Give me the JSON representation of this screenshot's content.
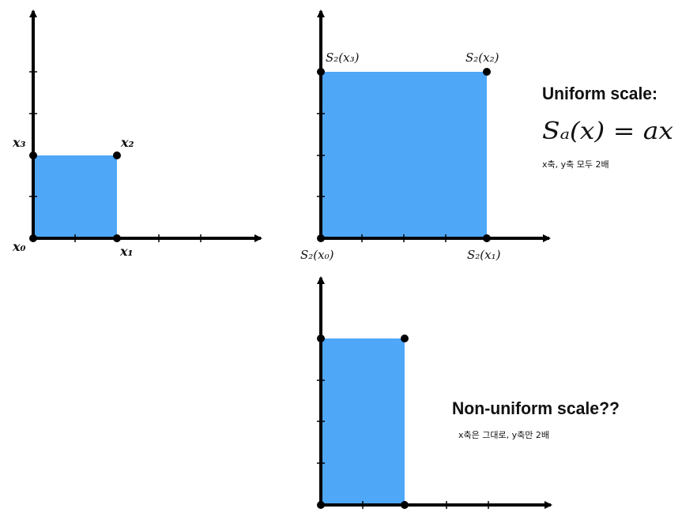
{
  "colors": {
    "fill": "#4FA7F8",
    "axis": "#000000",
    "point": "#000000"
  },
  "panels": {
    "original": {
      "labels": {
        "x0": "x₀",
        "x1": "x₁",
        "x2": "x₂",
        "x3": "x₃"
      },
      "grid_size": [
        2,
        2
      ]
    },
    "uniform": {
      "labels": {
        "x0": "S₂(x₀)",
        "x1": "S₂(x₁)",
        "x2": "S₂(x₂)",
        "x3": "S₂(x₃)"
      },
      "grid_size": [
        4,
        4
      ],
      "heading": "Uniform scale:",
      "formula": "Sₐ(x) = ax",
      "note": "x축, y축 모두 2배"
    },
    "nonuniform": {
      "grid_size": [
        2,
        4
      ],
      "heading": "Non-uniform scale??",
      "note": "x축은 그대로, y축만 2배"
    }
  }
}
